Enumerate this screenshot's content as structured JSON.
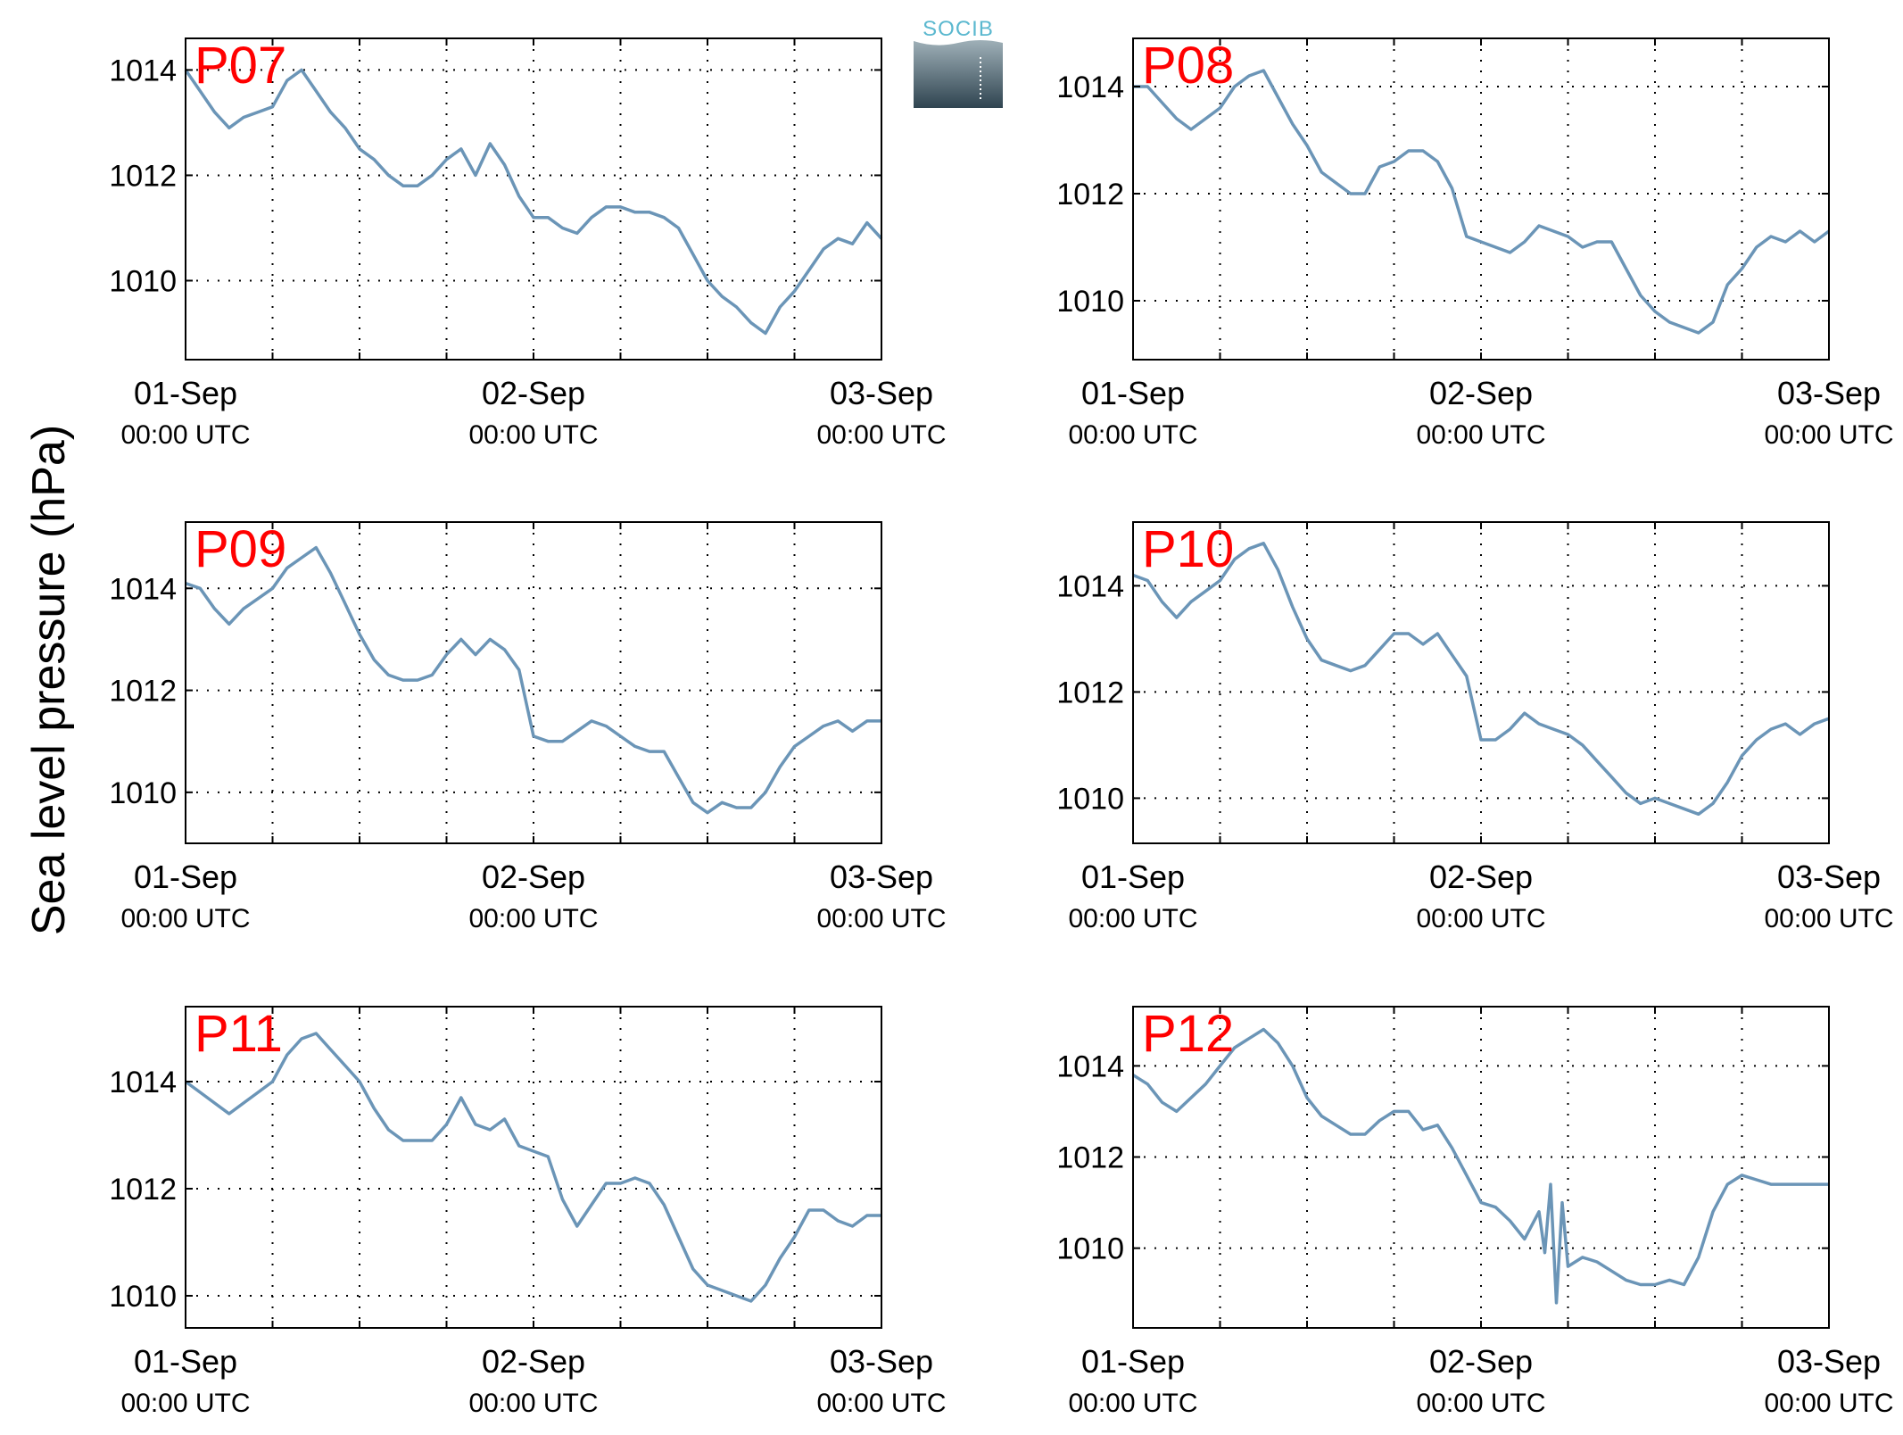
{
  "figure": {
    "ylabel": "Sea level pressure (hPa)",
    "logo_text": "SOCIB"
  },
  "colors": {
    "line": "#6b95b7",
    "panel_label": "#ff0000",
    "axis": "#000000",
    "grid": "#000000",
    "logo_text": "#5bb8cf",
    "logo_top": "#9fb0b8",
    "logo_bottom": "#2f4450"
  },
  "chart_data": [
    {
      "type": "line",
      "label": "P07",
      "x_ticks": [
        {
          "date": "01-Sep",
          "time": "00:00 UTC"
        },
        {
          "date": "02-Sep",
          "time": "00:00 UTC"
        },
        {
          "date": "03-Sep",
          "time": "00:00 UTC"
        }
      ],
      "y_ticks": [
        "1010",
        "1012",
        "1014"
      ],
      "xlim": [
        "2000-09-01 00:00",
        "2000-09-03 00:00"
      ],
      "ylim": [
        1008.5,
        1014.6
      ],
      "grid": true,
      "x_hours": [
        0,
        1,
        2,
        3,
        4,
        5,
        6,
        7,
        8,
        9,
        10,
        11,
        12,
        13,
        14,
        15,
        16,
        17,
        18,
        19,
        20,
        21,
        22,
        23,
        24,
        25,
        26,
        27,
        28,
        29,
        30,
        31,
        32,
        33,
        34,
        35,
        36,
        37,
        38,
        39,
        40,
        41,
        42,
        43,
        44,
        45,
        46,
        47,
        48
      ],
      "values": [
        1014.0,
        1013.6,
        1013.2,
        1012.9,
        1013.1,
        1013.2,
        1013.3,
        1013.8,
        1014.0,
        1013.6,
        1013.2,
        1012.9,
        1012.5,
        1012.3,
        1012.0,
        1011.8,
        1011.8,
        1012.0,
        1012.3,
        1012.5,
        1012.0,
        1012.6,
        1012.2,
        1011.6,
        1011.2,
        1011.2,
        1011.0,
        1010.9,
        1011.2,
        1011.4,
        1011.4,
        1011.3,
        1011.3,
        1011.2,
        1011.0,
        1010.5,
        1010.0,
        1009.7,
        1009.5,
        1009.2,
        1009.0,
        1009.5,
        1009.8,
        1010.2,
        1010.6,
        1010.8,
        1010.7,
        1011.1,
        1010.8
      ]
    },
    {
      "type": "line",
      "label": "P08",
      "x_ticks": [
        {
          "date": "01-Sep",
          "time": "00:00 UTC"
        },
        {
          "date": "02-Sep",
          "time": "00:00 UTC"
        },
        {
          "date": "03-Sep",
          "time": "00:00 UTC"
        }
      ],
      "y_ticks": [
        "1010",
        "1012",
        "1014"
      ],
      "xlim": [
        "2000-09-01 00:00",
        "2000-09-03 00:00"
      ],
      "ylim": [
        1008.9,
        1014.9
      ],
      "grid": true,
      "x_hours": [
        0,
        1,
        2,
        3,
        4,
        5,
        6,
        7,
        8,
        9,
        10,
        11,
        12,
        13,
        14,
        15,
        16,
        17,
        18,
        19,
        20,
        21,
        22,
        23,
        24,
        25,
        26,
        27,
        28,
        29,
        30,
        31,
        32,
        33,
        34,
        35,
        36,
        37,
        38,
        39,
        40,
        41,
        42,
        43,
        44,
        45,
        46,
        47,
        48
      ],
      "values": [
        1014.0,
        1014.0,
        1013.7,
        1013.4,
        1013.2,
        1013.4,
        1013.6,
        1014.0,
        1014.2,
        1014.3,
        1013.8,
        1013.3,
        1012.9,
        1012.4,
        1012.2,
        1012.0,
        1012.0,
        1012.5,
        1012.6,
        1012.8,
        1012.8,
        1012.6,
        1012.1,
        1011.2,
        1011.1,
        1011.0,
        1010.9,
        1011.1,
        1011.4,
        1011.3,
        1011.2,
        1011.0,
        1011.1,
        1011.1,
        1010.6,
        1010.1,
        1009.8,
        1009.6,
        1009.5,
        1009.4,
        1009.6,
        1010.3,
        1010.6,
        1011.0,
        1011.2,
        1011.1,
        1011.3,
        1011.1,
        1011.3
      ]
    },
    {
      "type": "line",
      "label": "P09",
      "x_ticks": [
        {
          "date": "01-Sep",
          "time": "00:00 UTC"
        },
        {
          "date": "02-Sep",
          "time": "00:00 UTC"
        },
        {
          "date": "03-Sep",
          "time": "00:00 UTC"
        }
      ],
      "y_ticks": [
        "1010",
        "1012",
        "1014"
      ],
      "xlim": [
        "2000-09-01 00:00",
        "2000-09-03 00:00"
      ],
      "ylim": [
        1009.0,
        1015.3
      ],
      "grid": true,
      "x_hours": [
        0,
        1,
        2,
        3,
        4,
        5,
        6,
        7,
        8,
        9,
        10,
        11,
        12,
        13,
        14,
        15,
        16,
        17,
        18,
        19,
        20,
        21,
        22,
        23,
        24,
        25,
        26,
        27,
        28,
        29,
        30,
        31,
        32,
        33,
        34,
        35,
        36,
        37,
        38,
        39,
        40,
        41,
        42,
        43,
        44,
        45,
        46,
        47,
        48
      ],
      "values": [
        1014.1,
        1014.0,
        1013.6,
        1013.3,
        1013.6,
        1013.8,
        1014.0,
        1014.4,
        1014.6,
        1014.8,
        1014.3,
        1013.7,
        1013.1,
        1012.6,
        1012.3,
        1012.2,
        1012.2,
        1012.3,
        1012.7,
        1013.0,
        1012.7,
        1013.0,
        1012.8,
        1012.4,
        1011.1,
        1011.0,
        1011.0,
        1011.2,
        1011.4,
        1011.3,
        1011.1,
        1010.9,
        1010.8,
        1010.8,
        1010.3,
        1009.8,
        1009.6,
        1009.8,
        1009.7,
        1009.7,
        1010.0,
        1010.5,
        1010.9,
        1011.1,
        1011.3,
        1011.4,
        1011.2,
        1011.4,
        1011.4
      ]
    },
    {
      "type": "line",
      "label": "P10",
      "x_ticks": [
        {
          "date": "01-Sep",
          "time": "00:00 UTC"
        },
        {
          "date": "02-Sep",
          "time": "00:00 UTC"
        },
        {
          "date": "03-Sep",
          "time": "00:00 UTC"
        }
      ],
      "y_ticks": [
        "1010",
        "1012",
        "1014"
      ],
      "xlim": [
        "2000-09-01 00:00",
        "2000-09-03 00:00"
      ],
      "ylim": [
        1009.15,
        1015.2
      ],
      "grid": true,
      "x_hours": [
        0,
        1,
        2,
        3,
        4,
        5,
        6,
        7,
        8,
        9,
        10,
        11,
        12,
        13,
        14,
        15,
        16,
        17,
        18,
        19,
        20,
        21,
        22,
        23,
        24,
        25,
        26,
        27,
        28,
        29,
        30,
        31,
        32,
        33,
        34,
        35,
        36,
        37,
        38,
        39,
        40,
        41,
        42,
        43,
        44,
        45,
        46,
        47,
        48
      ],
      "values": [
        1014.2,
        1014.1,
        1013.7,
        1013.4,
        1013.7,
        1013.9,
        1014.1,
        1014.5,
        1014.7,
        1014.8,
        1014.3,
        1013.6,
        1013.0,
        1012.6,
        1012.5,
        1012.4,
        1012.5,
        1012.8,
        1013.1,
        1013.1,
        1012.9,
        1013.1,
        1012.7,
        1012.3,
        1011.1,
        1011.1,
        1011.3,
        1011.6,
        1011.4,
        1011.3,
        1011.2,
        1011.0,
        1010.7,
        1010.4,
        1010.1,
        1009.9,
        1010.0,
        1009.9,
        1009.8,
        1009.7,
        1009.9,
        1010.3,
        1010.8,
        1011.1,
        1011.3,
        1011.4,
        1011.2,
        1011.4,
        1011.5
      ]
    },
    {
      "type": "line",
      "label": "P11",
      "x_ticks": [
        {
          "date": "01-Sep",
          "time": "00:00 UTC"
        },
        {
          "date": "02-Sep",
          "time": "00:00 UTC"
        },
        {
          "date": "03-Sep",
          "time": "00:00 UTC"
        }
      ],
      "y_ticks": [
        "1010",
        "1012",
        "1014"
      ],
      "xlim": [
        "2000-09-01 00:00",
        "2000-09-03 00:00"
      ],
      "ylim": [
        1009.4,
        1015.4
      ],
      "grid": true,
      "x_hours": [
        0,
        1,
        2,
        3,
        4,
        5,
        6,
        7,
        8,
        9,
        10,
        11,
        12,
        13,
        14,
        15,
        16,
        17,
        18,
        19,
        20,
        21,
        22,
        23,
        24,
        25,
        26,
        27,
        28,
        29,
        30,
        31,
        32,
        33,
        34,
        35,
        36,
        37,
        38,
        39,
        40,
        41,
        42,
        43,
        44,
        45,
        46,
        47,
        48
      ],
      "values": [
        1014.0,
        1013.8,
        1013.6,
        1013.4,
        1013.6,
        1013.8,
        1014.0,
        1014.5,
        1014.8,
        1014.9,
        1014.6,
        1014.3,
        1014.0,
        1013.5,
        1013.1,
        1012.9,
        1012.9,
        1012.9,
        1013.2,
        1013.7,
        1013.2,
        1013.1,
        1013.3,
        1012.8,
        1012.7,
        1012.6,
        1011.8,
        1011.3,
        1011.7,
        1012.1,
        1012.1,
        1012.2,
        1012.1,
        1011.7,
        1011.1,
        1010.5,
        1010.2,
        1010.1,
        1010.0,
        1009.9,
        1010.2,
        1010.7,
        1011.1,
        1011.6,
        1011.6,
        1011.4,
        1011.3,
        1011.5,
        1011.5
      ]
    },
    {
      "type": "line",
      "label": "P12",
      "x_ticks": [
        {
          "date": "01-Sep",
          "time": "00:00 UTC"
        },
        {
          "date": "02-Sep",
          "time": "00:00 UTC"
        },
        {
          "date": "03-Sep",
          "time": "00:00 UTC"
        }
      ],
      "y_ticks": [
        "1010",
        "1012",
        "1014"
      ],
      "xlim": [
        "2000-09-01 00:00",
        "2000-09-03 00:00"
      ],
      "ylim": [
        1008.25,
        1015.3
      ],
      "grid": true,
      "x_hours": [
        0,
        1,
        2,
        3,
        4,
        5,
        6,
        7,
        8,
        9,
        10,
        11,
        12,
        13,
        14,
        15,
        16,
        17,
        18,
        19,
        20,
        21,
        22,
        23,
        24,
        25,
        26,
        27,
        28,
        28.4,
        28.8,
        29.2,
        29.6,
        30,
        31,
        32,
        33,
        34,
        35,
        36,
        37,
        38,
        39,
        40,
        41,
        42,
        43,
        44,
        45,
        46,
        47,
        48
      ],
      "values": [
        1013.8,
        1013.6,
        1013.2,
        1013.0,
        1013.3,
        1013.6,
        1014.0,
        1014.4,
        1014.6,
        1014.8,
        1014.5,
        1014.0,
        1013.3,
        1012.9,
        1012.7,
        1012.5,
        1012.5,
        1012.8,
        1013.0,
        1013.0,
        1012.6,
        1012.7,
        1012.2,
        1011.6,
        1011.0,
        1010.9,
        1010.6,
        1010.2,
        1010.8,
        1009.9,
        1011.4,
        1008.8,
        1011.0,
        1009.6,
        1009.8,
        1009.7,
        1009.5,
        1009.3,
        1009.2,
        1009.2,
        1009.3,
        1009.2,
        1009.8,
        1010.8,
        1011.4,
        1011.6,
        1011.5,
        1011.4,
        1011.4,
        1011.4,
        1011.4,
        1011.4
      ]
    }
  ]
}
